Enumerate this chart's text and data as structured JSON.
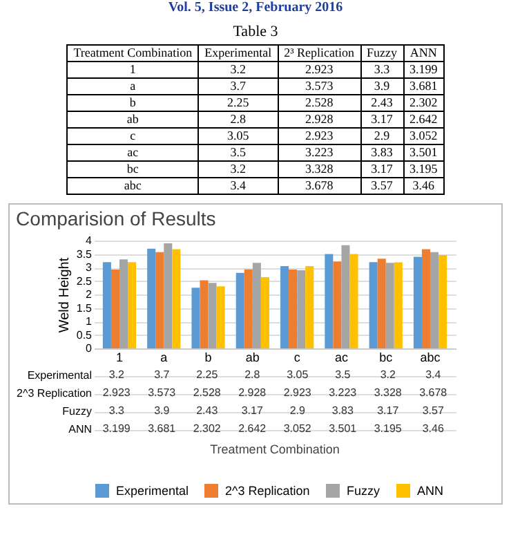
{
  "chart_data": [
    {
      "type": "other",
      "title": "Table 3",
      "annotations": [
        "Vol. 5, Issue 2, February 2016"
      ],
      "xlabel": "Treatment Combination",
      "data_labels": true,
      "categories": [
        "1",
        "a",
        "b",
        "ab",
        "c",
        "ac",
        "bc",
        "abc"
      ],
      "series": [
        {
          "name": "Experimental",
          "values": [
            3.2,
            3.7,
            2.25,
            2.8,
            3.05,
            3.5,
            3.2,
            3.4
          ]
        },
        {
          "name": "2³ Replication",
          "values": [
            2.923,
            3.573,
            2.528,
            2.928,
            2.923,
            3.223,
            3.328,
            3.678
          ]
        },
        {
          "name": "Fuzzy",
          "values": [
            3.3,
            3.9,
            2.43,
            3.17,
            2.9,
            3.83,
            3.17,
            3.57
          ]
        },
        {
          "name": "ANN",
          "values": [
            3.199,
            3.681,
            2.302,
            2.642,
            3.052,
            3.501,
            3.195,
            3.46
          ]
        }
      ]
    },
    {
      "type": "bar",
      "title": "Comparision of Results",
      "ylabel": "Weld Height",
      "annotations": [
        "Treatment Combination"
      ],
      "categories": [
        "1",
        "a",
        "b",
        "ab",
        "c",
        "ac",
        "bc",
        "abc"
      ],
      "series": [
        {
          "name": "Experimental",
          "color": "#5b9bd5",
          "values": [
            3.2,
            3.7,
            2.25,
            2.8,
            3.05,
            3.5,
            3.2,
            3.4
          ]
        },
        {
          "name": "2^3 Replication",
          "color": "#ed7d31",
          "values": [
            2.923,
            3.573,
            2.528,
            2.928,
            2.923,
            3.223,
            3.328,
            3.678
          ]
        },
        {
          "name": "Fuzzy",
          "color": "#a5a5a5",
          "values": [
            3.3,
            3.9,
            2.43,
            3.17,
            2.9,
            3.83,
            3.17,
            3.57
          ]
        },
        {
          "name": "ANN",
          "color": "#ffc000",
          "values": [
            3.199,
            3.681,
            2.302,
            2.642,
            3.052,
            3.501,
            3.195,
            3.46
          ]
        }
      ],
      "ylim": [
        0,
        4
      ],
      "yticks": [
        0,
        0.5,
        1,
        1.5,
        2,
        2.5,
        3,
        3.5,
        4
      ],
      "grid": "y",
      "legend": "bottom",
      "data_labels": true
    }
  ]
}
